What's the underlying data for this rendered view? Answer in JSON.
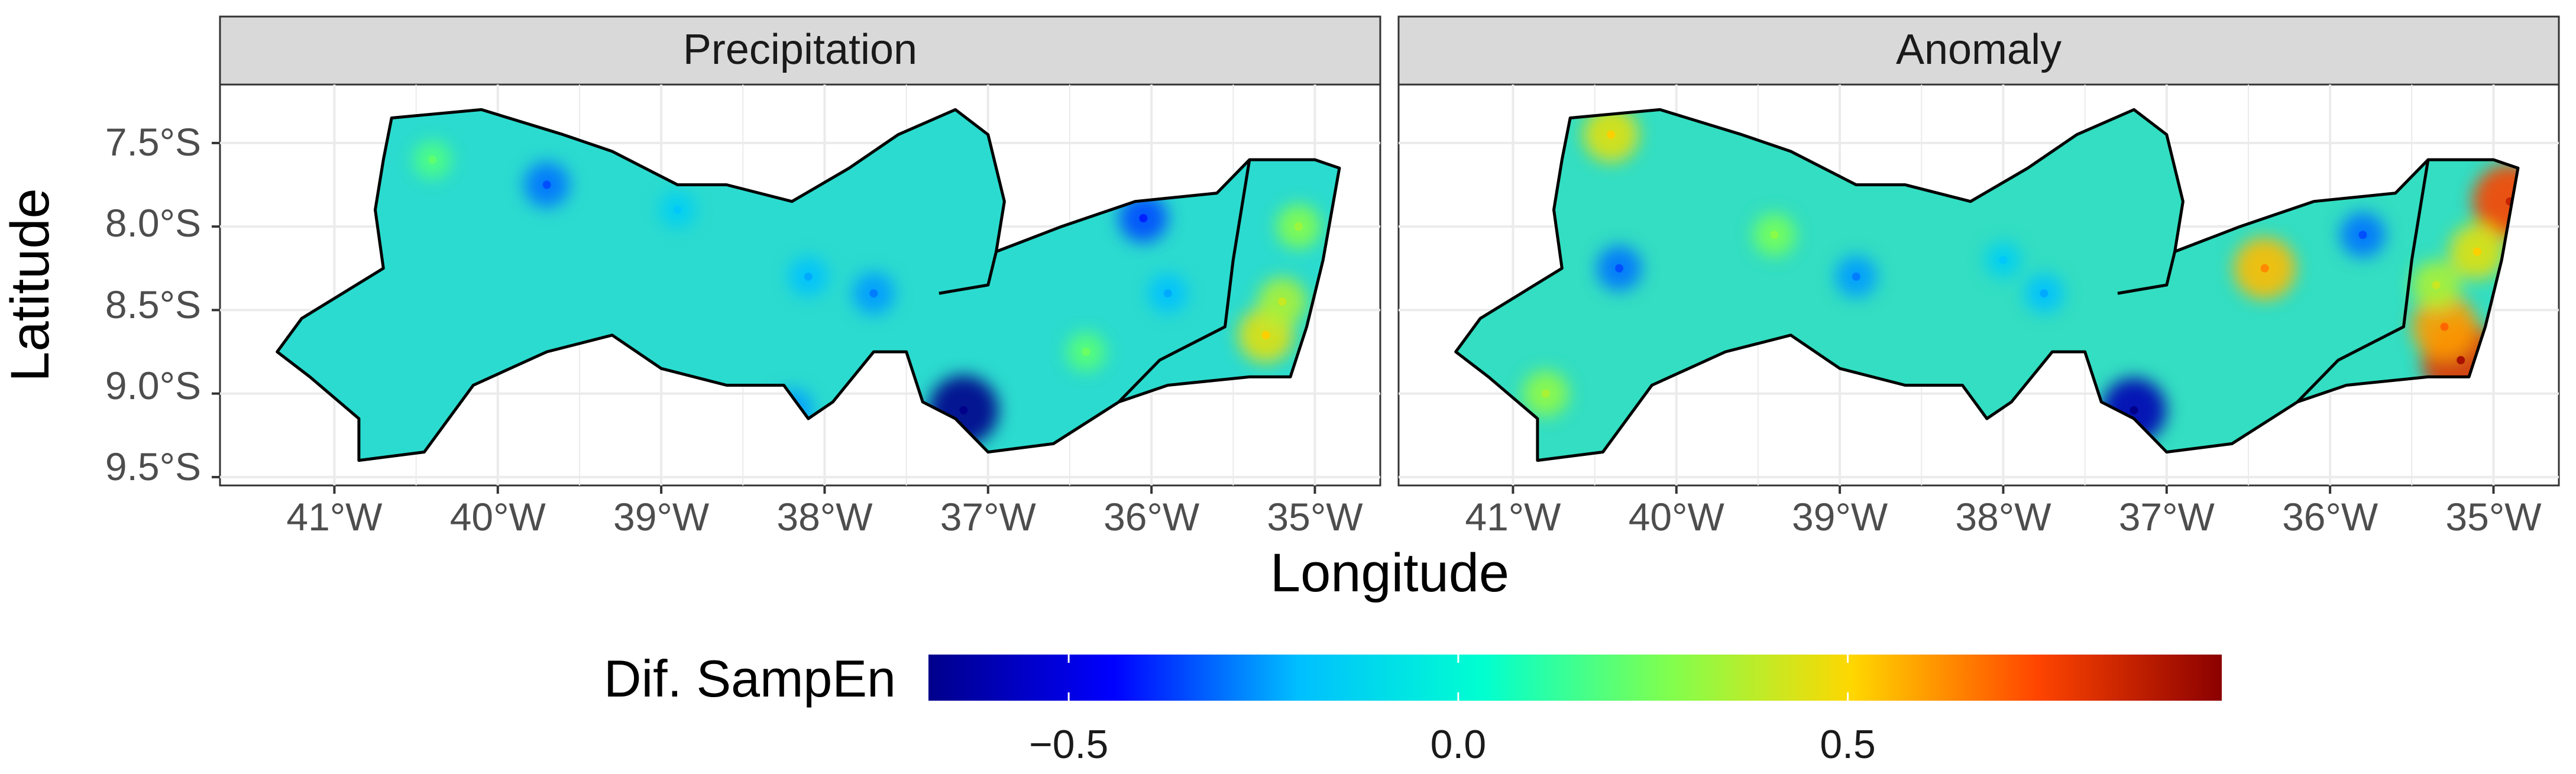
{
  "figure": {
    "x_axis_title": "Longitude",
    "y_axis_title": "Latitude"
  },
  "panels": [
    {
      "strip_label": "Precipitation"
    },
    {
      "strip_label": "Anomaly"
    }
  ],
  "x_ticks": [
    "41°W",
    "40°W",
    "39°W",
    "38°W",
    "37°W",
    "36°W",
    "35°W"
  ],
  "y_ticks": [
    "7.5°S",
    "8.0°S",
    "8.5°S",
    "9.0°S",
    "9.5°S"
  ],
  "legend": {
    "title": "Dif. SampEn",
    "ticks": [
      "−0.5",
      "0.0",
      "0.5"
    ]
  },
  "colors": {
    "panel_strip_bg": "#d9d9d9",
    "gridline": "#ebebeb",
    "region_outline": "#000000",
    "precipitation_base_fill": "#42d8c4",
    "anomaly_base_fill": "#4fd6b4",
    "colorscale": [
      "#00008b",
      "#0000ff",
      "#00bfff",
      "#00ffd0",
      "#7fff4f",
      "#ffd700",
      "#ff4500",
      "#8b0000"
    ]
  },
  "chart_data": {
    "type": "heatmap",
    "title": "",
    "xlabel": "Longitude",
    "ylabel": "Latitude",
    "xlim": [
      -41.7,
      -34.6
    ],
    "ylim": [
      -9.55,
      -7.15
    ],
    "facets": [
      "Precipitation",
      "Anomaly"
    ],
    "colorbar": {
      "label": "Dif. SampEn",
      "range": [
        -0.68,
        0.98
      ],
      "ticks": [
        -0.5,
        0.0,
        0.5
      ]
    },
    "outline_polygon": [
      [
        -40.65,
        -7.35
      ],
      [
        -40.1,
        -7.3
      ],
      [
        -39.6,
        -7.45
      ],
      [
        -39.3,
        -7.55
      ],
      [
        -38.9,
        -7.75
      ],
      [
        -38.6,
        -7.75
      ],
      [
        -38.2,
        -7.85
      ],
      [
        -37.85,
        -7.65
      ],
      [
        -37.55,
        -7.45
      ],
      [
        -37.2,
        -7.3
      ],
      [
        -37.0,
        -7.45
      ],
      [
        -36.9,
        -7.85
      ],
      [
        -36.95,
        -8.15
      ],
      [
        -36.55,
        -8.0
      ],
      [
        -36.1,
        -7.85
      ],
      [
        -35.6,
        -7.8
      ],
      [
        -35.4,
        -7.6
      ],
      [
        -35.0,
        -7.6
      ],
      [
        -34.85,
        -7.65
      ],
      [
        -34.95,
        -8.2
      ],
      [
        -35.05,
        -8.6
      ],
      [
        -35.15,
        -8.9
      ],
      [
        -35.4,
        -8.9
      ],
      [
        -35.9,
        -8.95
      ],
      [
        -36.2,
        -9.05
      ],
      [
        -36.6,
        -9.3
      ],
      [
        -37.0,
        -9.35
      ],
      [
        -37.2,
        -9.15
      ],
      [
        -37.4,
        -9.05
      ],
      [
        -37.5,
        -8.75
      ],
      [
        -37.7,
        -8.75
      ],
      [
        -37.95,
        -9.05
      ],
      [
        -38.1,
        -9.15
      ],
      [
        -38.25,
        -8.95
      ],
      [
        -38.6,
        -8.95
      ],
      [
        -39.0,
        -8.85
      ],
      [
        -39.3,
        -8.65
      ],
      [
        -39.7,
        -8.75
      ],
      [
        -40.15,
        -8.95
      ],
      [
        -40.45,
        -9.35
      ],
      [
        -40.85,
        -9.4
      ],
      [
        -40.85,
        -9.15
      ],
      [
        -41.15,
        -8.9
      ],
      [
        -41.35,
        -8.75
      ],
      [
        -41.2,
        -8.55
      ],
      [
        -40.95,
        -8.4
      ],
      [
        -40.7,
        -8.25
      ],
      [
        -40.75,
        -7.9
      ],
      [
        -40.7,
        -7.6
      ]
    ],
    "internal_boundaries": [
      [
        [
          -37.3,
          -8.4
        ],
        [
          -37.0,
          -8.35
        ],
        [
          -36.95,
          -8.15
        ]
      ],
      [
        [
          -35.4,
          -7.6
        ],
        [
          -35.45,
          -7.9
        ],
        [
          -35.5,
          -8.2
        ],
        [
          -35.55,
          -8.6
        ],
        [
          -35.95,
          -8.8
        ],
        [
          -36.2,
          -9.05
        ]
      ]
    ],
    "series": [
      {
        "name": "Precipitation",
        "base_value": 0.0,
        "hotspots": [
          {
            "lon": -37.15,
            "lat": -9.1,
            "value": -0.68
          },
          {
            "lon": -35.3,
            "lat": -8.65,
            "value": 0.45
          },
          {
            "lon": -35.2,
            "lat": -8.45,
            "value": 0.35
          },
          {
            "lon": -35.1,
            "lat": -8.0,
            "value": 0.28
          },
          {
            "lon": -39.7,
            "lat": -7.75,
            "value": -0.3
          },
          {
            "lon": -37.7,
            "lat": -8.4,
            "value": -0.25
          },
          {
            "lon": -38.1,
            "lat": -8.3,
            "value": -0.2
          },
          {
            "lon": -36.05,
            "lat": -7.95,
            "value": -0.35
          },
          {
            "lon": -35.9,
            "lat": -8.4,
            "value": -0.2
          },
          {
            "lon": -36.4,
            "lat": -8.75,
            "value": 0.2
          },
          {
            "lon": -38.2,
            "lat": -9.1,
            "value": -0.25
          },
          {
            "lon": -40.4,
            "lat": -7.6,
            "value": 0.18
          },
          {
            "lon": -38.9,
            "lat": -7.9,
            "value": -0.15
          }
        ]
      },
      {
        "name": "Anomaly",
        "base_value": 0.05,
        "hotspots": [
          {
            "lon": -35.2,
            "lat": -8.8,
            "value": 0.8
          },
          {
            "lon": -35.3,
            "lat": -8.6,
            "value": 0.6
          },
          {
            "lon": -34.9,
            "lat": -7.85,
            "value": 0.75
          },
          {
            "lon": -35.1,
            "lat": -8.15,
            "value": 0.45
          },
          {
            "lon": -35.35,
            "lat": -8.35,
            "value": 0.35
          },
          {
            "lon": -37.2,
            "lat": -9.1,
            "value": -0.6
          },
          {
            "lon": -40.4,
            "lat": -7.45,
            "value": 0.45
          },
          {
            "lon": -40.35,
            "lat": -8.25,
            "value": -0.3
          },
          {
            "lon": -38.9,
            "lat": -8.3,
            "value": -0.25
          },
          {
            "lon": -37.75,
            "lat": -8.4,
            "value": -0.2
          },
          {
            "lon": -35.8,
            "lat": -8.05,
            "value": -0.3
          },
          {
            "lon": -36.4,
            "lat": -8.25,
            "value": 0.55
          },
          {
            "lon": -39.4,
            "lat": -8.05,
            "value": 0.25
          },
          {
            "lon": -40.8,
            "lat": -9.0,
            "value": 0.3
          },
          {
            "lon": -38.0,
            "lat": -8.2,
            "value": -0.15
          }
        ]
      }
    ]
  }
}
